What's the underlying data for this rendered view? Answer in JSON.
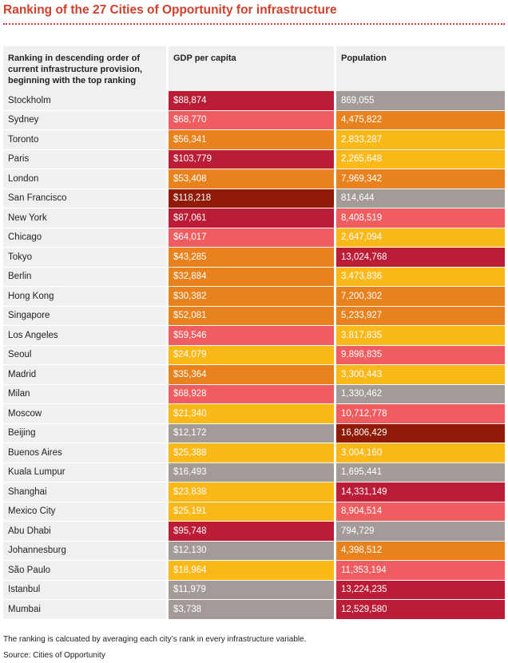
{
  "title": "Ranking of the 27 Cities of Opportunity for infrastructure",
  "colors": {
    "title": "#d0402c",
    "header_bg": "#f0f0f0",
    "gray": "#a39b97",
    "yellow": "#fbb819",
    "orange": "#e8821e",
    "salmon": "#f05d61",
    "crimson": "#bb1d36",
    "maroon": "#8f1b06"
  },
  "chart_data": {
    "type": "table",
    "columns": [
      "Ranking in descending order of current infrastructure provision, beginning with the top ranking",
      "GDP per capita",
      "Population"
    ],
    "rows": [
      {
        "city": "Stockholm",
        "gdp": "$88,874",
        "pop": "869,055",
        "gdp_color": "crimson",
        "pop_color": "gray"
      },
      {
        "city": "Sydney",
        "gdp": "$68,770",
        "pop": "4,475,822",
        "gdp_color": "salmon",
        "pop_color": "orange"
      },
      {
        "city": "Toronto",
        "gdp": "$56,341",
        "pop": "2,833,287",
        "gdp_color": "orange",
        "pop_color": "yellow"
      },
      {
        "city": "Paris",
        "gdp": "$103,779",
        "pop": "2,265,648",
        "gdp_color": "crimson",
        "pop_color": "yellow"
      },
      {
        "city": "London",
        "gdp": "$53,408",
        "pop": "7,969,342",
        "gdp_color": "orange",
        "pop_color": "orange"
      },
      {
        "city": "San Francisco",
        "gdp": "$118,218",
        "pop": "814,644",
        "gdp_color": "maroon",
        "pop_color": "gray"
      },
      {
        "city": "New York",
        "gdp": "$87,061",
        "pop": "8,408,519",
        "gdp_color": "crimson",
        "pop_color": "salmon"
      },
      {
        "city": "Chicago",
        "gdp": "$64,017",
        "pop": "2,647,094",
        "gdp_color": "salmon",
        "pop_color": "yellow"
      },
      {
        "city": "Tokyo",
        "gdp": "$43,285",
        "pop": "13,024,768",
        "gdp_color": "orange",
        "pop_color": "crimson"
      },
      {
        "city": "Berlin",
        "gdp": "$32,884",
        "pop": "3,473,836",
        "gdp_color": "orange",
        "pop_color": "yellow"
      },
      {
        "city": "Hong Kong",
        "gdp": "$30,382",
        "pop": "7,200,302",
        "gdp_color": "orange",
        "pop_color": "orange"
      },
      {
        "city": "Singapore",
        "gdp": "$52,081",
        "pop": "5,233,927",
        "gdp_color": "orange",
        "pop_color": "orange"
      },
      {
        "city": "Los Angeles",
        "gdp": "$59,546",
        "pop": "3,817,835",
        "gdp_color": "salmon",
        "pop_color": "yellow"
      },
      {
        "city": "Seoul",
        "gdp": "$24,079",
        "pop": "9,898,835",
        "gdp_color": "yellow",
        "pop_color": "salmon"
      },
      {
        "city": "Madrid",
        "gdp": "$35,364",
        "pop": "3,300,443",
        "gdp_color": "orange",
        "pop_color": "yellow"
      },
      {
        "city": "Milan",
        "gdp": "$68,928",
        "pop": "1,330,462",
        "gdp_color": "salmon",
        "pop_color": "gray"
      },
      {
        "city": "Moscow",
        "gdp": "$21,340",
        "pop": "10,712,778",
        "gdp_color": "yellow",
        "pop_color": "salmon"
      },
      {
        "city": "Beijing",
        "gdp": "$12,172",
        "pop": "16,806,429",
        "gdp_color": "gray",
        "pop_color": "maroon"
      },
      {
        "city": "Buenos Aires",
        "gdp": "$25,388",
        "pop": "3,004,160",
        "gdp_color": "yellow",
        "pop_color": "yellow"
      },
      {
        "city": "Kuala Lumpur",
        "gdp": "$16,493",
        "pop": "1,695,441",
        "gdp_color": "gray",
        "pop_color": "gray"
      },
      {
        "city": "Shanghai",
        "gdp": "$23,838",
        "pop": "14,331,149",
        "gdp_color": "yellow",
        "pop_color": "crimson"
      },
      {
        "city": "Mexico City",
        "gdp": "$25,191",
        "pop": "8,904,514",
        "gdp_color": "yellow",
        "pop_color": "salmon"
      },
      {
        "city": "Abu Dhabi",
        "gdp": "$95,748",
        "pop": "794,729",
        "gdp_color": "crimson",
        "pop_color": "gray"
      },
      {
        "city": "Johannesburg",
        "gdp": "$12,130",
        "pop": "4,398,512",
        "gdp_color": "gray",
        "pop_color": "orange"
      },
      {
        "city": "São Paulo",
        "gdp": "$18,964",
        "pop": "11,353,194",
        "gdp_color": "yellow",
        "pop_color": "salmon"
      },
      {
        "city": "Istanbul",
        "gdp": "$11,979",
        "pop": "13,224,235",
        "gdp_color": "gray",
        "pop_color": "crimson"
      },
      {
        "city": "Mumbai",
        "gdp": "$3,738",
        "pop": "12,529,580",
        "gdp_color": "gray",
        "pop_color": "crimson"
      }
    ]
  },
  "footnote": "The ranking is calcuated by averaging each city’s rank in every infrastructure variable.",
  "source": "Source: Cities of Opportunity"
}
